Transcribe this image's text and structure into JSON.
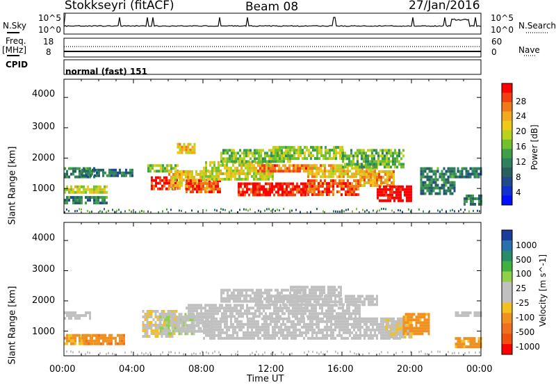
{
  "header": {
    "station": "Stokkseyri (fitACF)",
    "beam": "Beam 08",
    "date": "27/Jan/2016"
  },
  "summary": {
    "nsky_label": "N.Sky",
    "nsky_ticks": [
      "10^5",
      "10^0"
    ],
    "nsearch_label": "N.Search",
    "nsearch_ticks": [
      "10^5",
      "10^0"
    ],
    "freq_label_line1": "Freq.",
    "freq_label_line2": "[MHz]",
    "freq_ticks": [
      "18",
      "8"
    ],
    "nave_label": "Nave",
    "nave_ticks": [
      "60",
      "0"
    ],
    "cpid_label": "CPID",
    "cpid_value": "normal (fast) 151"
  },
  "axes": {
    "ylabel": "Slant Range [km]",
    "yticks": [
      "4000",
      "3000",
      "2000",
      "1000"
    ],
    "xticks": [
      "00:00",
      "04:00",
      "08:00",
      "12:00",
      "16:00",
      "20:00",
      "00:00"
    ],
    "xlabel": "Time UT"
  },
  "colorbars": {
    "power": {
      "label": "Power [dB]",
      "ticks": [
        "28",
        "24",
        "20",
        "16",
        "12",
        "8",
        "4"
      ],
      "colors": [
        "#ff0000",
        "#f04010",
        "#f07a18",
        "#f2a820",
        "#eec81a",
        "#b8d21e",
        "#70c030",
        "#3f9f48",
        "#2f8060",
        "#286060",
        "#204a90",
        "#1030d0",
        "#0010ff"
      ]
    },
    "velocity": {
      "label": "Velocity [m s^-1]",
      "ticks": [
        "1000",
        "500",
        "100",
        "25",
        "-25",
        "-100",
        "-500",
        "-1000"
      ],
      "colors": [
        "#1a3c9a",
        "#2a6fb0",
        "#2a8a6a",
        "#40b040",
        "#90d048",
        "#c0c0c0",
        "#c0c0c0",
        "#f4c020",
        "#f09020",
        "#f07020",
        "#ee5010",
        "#ff0000"
      ]
    }
  },
  "chart_data": {
    "type": "heatmap",
    "title": "Stokkseyri (fitACF) Beam 08 27/Jan/2016",
    "xlabel": "Time UT",
    "ylabel": "Slant Range [km]",
    "xlim_hours": [
      0,
      24
    ],
    "ylim_km": [
      180,
      4600
    ],
    "grid": false,
    "panels": [
      {
        "name": "Power",
        "unit": "dB",
        "clim": [
          0,
          30
        ],
        "regions": [
          {
            "t": [
              0.0,
              1.8
            ],
            "r": [
              1400,
              1700
            ],
            "v": 10
          },
          {
            "t": [
              0.0,
              2.5
            ],
            "r": [
              850,
              1100
            ],
            "v": 18
          },
          {
            "t": [
              0.0,
              2.5
            ],
            "r": [
              500,
              750
            ],
            "v": 10
          },
          {
            "t": [
              1.0,
              4.0
            ],
            "r": [
              1450,
              1650
            ],
            "v": 9
          },
          {
            "t": [
              4.8,
              6.5
            ],
            "r": [
              1600,
              1800
            ],
            "v": 16
          },
          {
            "t": [
              5.0,
              6.5
            ],
            "r": [
              950,
              1400
            ],
            "v": 28
          },
          {
            "t": [
              6.0,
              8.5
            ],
            "r": [
              1000,
              1600
            ],
            "v": 20
          },
          {
            "t": [
              6.5,
              7.5
            ],
            "r": [
              2200,
              2500
            ],
            "v": 20
          },
          {
            "t": [
              7.0,
              9.0
            ],
            "r": [
              900,
              1300
            ],
            "v": 26
          },
          {
            "t": [
              8.0,
              12.0
            ],
            "r": [
              1300,
              1900
            ],
            "v": 18
          },
          {
            "t": [
              9.0,
              13.0
            ],
            "r": [
              1900,
              2300
            ],
            "v": 15
          },
          {
            "t": [
              10.0,
              14.0
            ],
            "r": [
              800,
              1200
            ],
            "v": 28
          },
          {
            "t": [
              11.0,
              15.0
            ],
            "r": [
              1600,
              1800
            ],
            "v": 24
          },
          {
            "t": [
              12.0,
              16.0
            ],
            "r": [
              2000,
              2400
            ],
            "v": 16
          },
          {
            "t": [
              14.0,
              17.0
            ],
            "r": [
              800,
              1300
            ],
            "v": 26
          },
          {
            "t": [
              14.0,
              18.0
            ],
            "r": [
              1400,
              1800
            ],
            "v": 20
          },
          {
            "t": [
              16.0,
              19.5
            ],
            "r": [
              1700,
              2300
            ],
            "v": 14
          },
          {
            "t": [
              17.0,
              19.0
            ],
            "r": [
              1100,
              1600
            ],
            "v": 22
          },
          {
            "t": [
              18.0,
              20.0
            ],
            "r": [
              600,
              1100
            ],
            "v": 30
          },
          {
            "t": [
              20.5,
              22.5
            ],
            "r": [
              800,
              1700
            ],
            "v": 10
          },
          {
            "t": [
              22.5,
              24.0
            ],
            "r": [
              1400,
              1700
            ],
            "v": 9
          },
          {
            "t": [
              23.0,
              24.0
            ],
            "r": [
              500,
              800
            ],
            "v": 10
          }
        ]
      },
      {
        "name": "Velocity",
        "unit": "m s^-1",
        "clim": [
          -1000,
          1000
        ],
        "regions": [
          {
            "t": [
              0.0,
              2.3
            ],
            "r": [
              550,
              900
            ],
            "v": -350
          },
          {
            "t": [
              0.0,
              1.5
            ],
            "r": [
              1450,
              1650
            ],
            "v": 5
          },
          {
            "t": [
              1.0,
              3.5
            ],
            "r": [
              600,
              900
            ],
            "v": -450
          },
          {
            "t": [
              4.5,
              6.5
            ],
            "r": [
              800,
              1700
            ],
            "v": -150
          },
          {
            "t": [
              5.5,
              7.5
            ],
            "r": [
              900,
              1600
            ],
            "v": 150
          },
          {
            "t": [
              6.5,
              8.5
            ],
            "r": [
              1000,
              1500
            ],
            "v": -60
          },
          {
            "t": [
              7.0,
              17.0
            ],
            "r": [
              1500,
              1900
            ],
            "v": 0
          },
          {
            "t": [
              8.0,
              19.5
            ],
            "r": [
              800,
              1450
            ],
            "v": 0
          },
          {
            "t": [
              9.0,
              14.0
            ],
            "r": [
              2000,
              2400
            ],
            "v": 0
          },
          {
            "t": [
              11.0,
              18.0
            ],
            "r": [
              1900,
              2200
            ],
            "v": 0
          },
          {
            "t": [
              13.0,
              16.0
            ],
            "r": [
              2200,
              2500
            ],
            "v": 0
          },
          {
            "t": [
              18.5,
              20.0
            ],
            "r": [
              800,
              1400
            ],
            "v": -140
          },
          {
            "t": [
              19.5,
              21.0
            ],
            "r": [
              900,
              1600
            ],
            "v": -400
          },
          {
            "t": [
              22.5,
              24.0
            ],
            "r": [
              500,
              800
            ],
            "v": -380
          },
          {
            "t": [
              22.5,
              24.0
            ],
            "r": [
              1500,
              1650
            ],
            "v": 10
          }
        ]
      }
    ]
  }
}
